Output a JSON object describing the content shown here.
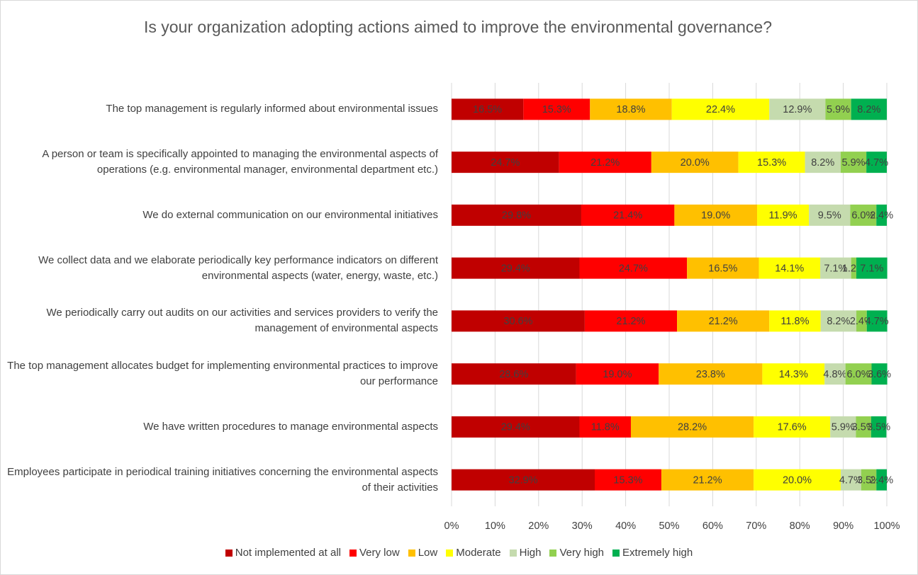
{
  "chart_data": {
    "type": "stacked-bar-horizontal-100",
    "title": "Is your organization adopting actions aimed to improve the environmental governance?",
    "categories": [
      "The top management is regularly informed about environmental issues",
      "A person or team is specifically appointed to managing the environmental aspects of operations (e.g. environmental manager, environmental department etc.)",
      "We do external communication on our environmental initiatives",
      "We collect data and we elaborate periodically key performance indicators on different environmental aspects (water, energy, waste, etc.)",
      "We periodically carry out audits on our activities and services providers to verify the management of environmental aspects",
      "The top management allocates budget for implementing environmental practices to improve our performance",
      "We have written procedures to manage environmental aspects",
      "Employees participate in periodical training initiatives concerning the environmental aspects of their activities"
    ],
    "series": [
      {
        "name": "Not implemented at all",
        "color": "#c00000",
        "values": [
          16.5,
          24.7,
          29.8,
          29.4,
          30.6,
          28.6,
          29.4,
          32.9
        ],
        "value_labels": [
          "16.5%",
          "24.7%",
          "29.8%",
          "29.4%",
          "30.6%",
          "28.6%",
          "29.4%",
          "32.9%"
        ]
      },
      {
        "name": "Very low",
        "color": "#ff0000",
        "values": [
          15.3,
          21.2,
          21.4,
          24.7,
          21.2,
          19.0,
          11.8,
          15.3
        ],
        "value_labels": [
          "15.3%",
          "21.2%",
          "21.4%",
          "24.7%",
          "21.2%",
          "19.0%",
          "11.8%",
          "15.3%"
        ]
      },
      {
        "name": "Low",
        "color": "#ffc000",
        "values": [
          18.8,
          20.0,
          19.0,
          16.5,
          21.2,
          23.8,
          28.2,
          21.2
        ],
        "value_labels": [
          "18.8%",
          "20.0%",
          "19.0%",
          "16.5%",
          "21.2%",
          "23.8%",
          "28.2%",
          "21.2%"
        ]
      },
      {
        "name": "Moderate",
        "color": "#ffff00",
        "values": [
          22.4,
          15.3,
          11.9,
          14.1,
          11.8,
          14.3,
          17.6,
          20.0
        ],
        "value_labels": [
          "22.4%",
          "15.3%",
          "11.9%",
          "14.1%",
          "11.8%",
          "14.3%",
          "17.6%",
          "20.0%"
        ]
      },
      {
        "name": "High",
        "color": "#c5dbae",
        "values": [
          12.9,
          8.2,
          9.5,
          7.1,
          8.2,
          4.8,
          5.9,
          4.7
        ],
        "value_labels": [
          "12.9%",
          "8.2%",
          "9.5%",
          "7.1%",
          "8.2%",
          "4.8%",
          "5.9%",
          "4.7%"
        ]
      },
      {
        "name": "Very high",
        "color": "#92d050",
        "values": [
          5.9,
          5.9,
          6.0,
          1.2,
          2.4,
          6.0,
          3.5,
          3.5
        ],
        "value_labels": [
          "5.9%",
          "5.9%",
          "6.0%",
          "1.2%",
          "2.4%",
          "6.0%",
          "3.5%",
          "3.5%"
        ]
      },
      {
        "name": "Extremely high",
        "color": "#00b050",
        "values": [
          8.2,
          4.7,
          2.4,
          7.1,
          4.7,
          3.6,
          3.5,
          2.4
        ],
        "value_labels": [
          "8.2%",
          "4.7%",
          "2.4%",
          "7.1%",
          "4.7%",
          "3.6%",
          "3.5%",
          "2.4%"
        ]
      }
    ],
    "xlim": [
      0,
      100
    ],
    "xticks": [
      {
        "value": 0,
        "label": "0%"
      },
      {
        "value": 10,
        "label": "10%"
      },
      {
        "value": 20,
        "label": "20%"
      },
      {
        "value": 30,
        "label": "30%"
      },
      {
        "value": 40,
        "label": "40%"
      },
      {
        "value": 50,
        "label": "50%"
      },
      {
        "value": 60,
        "label": "60%"
      },
      {
        "value": 70,
        "label": "70%"
      },
      {
        "value": 80,
        "label": "80%"
      },
      {
        "value": 90,
        "label": "90%"
      },
      {
        "value": 100,
        "label": "100%"
      }
    ],
    "grid": true,
    "legend": "bottom"
  }
}
